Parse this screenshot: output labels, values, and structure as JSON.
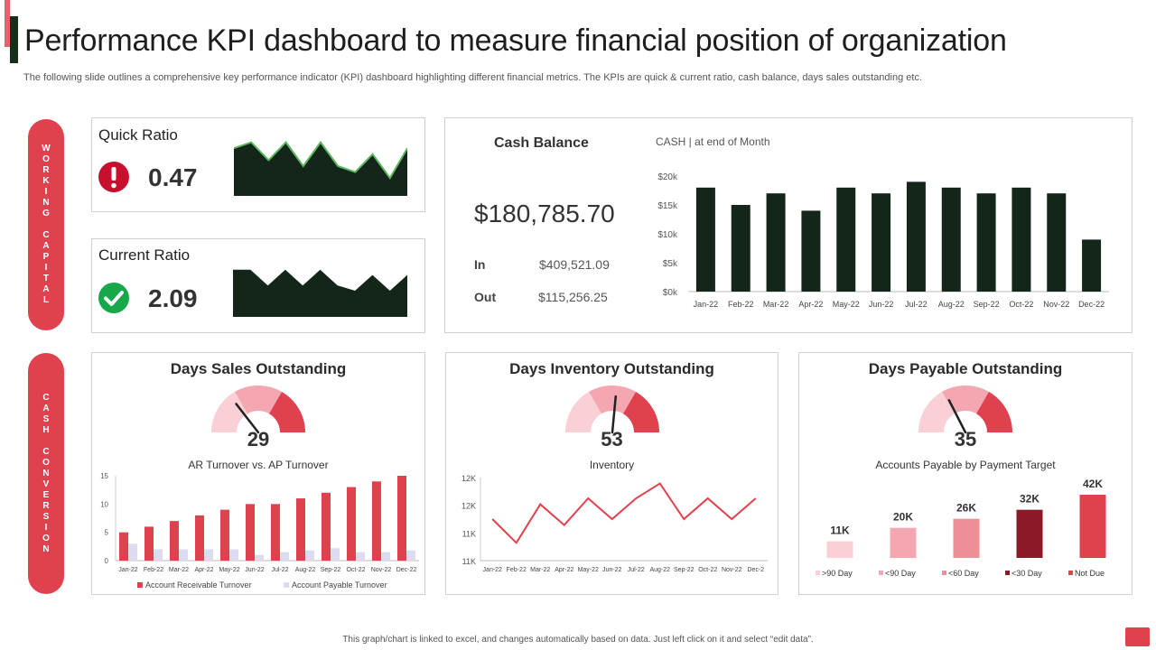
{
  "header": {
    "title": "Performance KPI dashboard to measure financial position of organization",
    "subtitle": "The following slide outlines a comprehensive key performance indicator (KPI) dashboard highlighting different financial metrics. The KPIs are quick & current ratio, cash balance, days sales outstanding etc."
  },
  "side_labels": {
    "working_capital": "WORKING CAPITAL",
    "cash_conversion": "CASH CONVERSION"
  },
  "colors": {
    "accent_red": "#e0414f",
    "dark_green": "#14261a",
    "light_green": "#5cb85c",
    "pink": "#f4a7b0",
    "light_pink": "#f9d0d5",
    "maroon": "#8b1a26",
    "lavender": "#dcdcf0"
  },
  "quick_ratio": {
    "title": "Quick Ratio",
    "value": "0.47",
    "status_icon": "alert-icon",
    "sparkline": [
      8,
      9,
      6,
      9,
      5,
      9,
      5,
      4,
      7,
      3,
      8
    ]
  },
  "current_ratio": {
    "title": "Current Ratio",
    "value": "2.09",
    "status_icon": "check-icon",
    "sparkline": [
      9,
      9,
      6,
      9,
      6,
      9,
      6,
      5,
      8,
      5,
      8
    ]
  },
  "cash_balance": {
    "title": "Cash Balance",
    "total": "$180,785.70",
    "in_label": "In",
    "in_value": "$409,521.09",
    "out_label": "Out",
    "out_value": "$115,256.25"
  },
  "days_sales": {
    "title": "Days Sales Outstanding",
    "gauge_value": "29",
    "needle": 29
  },
  "days_inventory": {
    "title": "Days Inventory Outstanding",
    "gauge_value": "53",
    "needle": 53
  },
  "days_payable": {
    "title": "Days Payable Outstanding",
    "gauge_value": "35",
    "needle": 35
  },
  "chart_data": [
    {
      "type": "bar",
      "title": "CASH | at end of Month",
      "categories": [
        "Jan-22",
        "Feb-22",
        "Mar-22",
        "Apr-22",
        "May-22",
        "Jun-22",
        "Jul-22",
        "Aug-22",
        "Sep-22",
        "Oct-22",
        "Nov-22",
        "Dec-22"
      ],
      "values": [
        18000,
        15000,
        17000,
        14000,
        18000,
        17000,
        19000,
        18000,
        17000,
        18000,
        17000,
        9000
      ],
      "ylim": [
        0,
        20000
      ],
      "yticks": [
        "$0k",
        "$5k",
        "$10k",
        "$15k",
        "$20k"
      ],
      "color": "#14261a"
    },
    {
      "type": "bar",
      "title": "AR Turnover vs. AP Turnover",
      "categories": [
        "Jan-22",
        "Feb-22",
        "Mar-22",
        "Apr-22",
        "May-22",
        "Jun-22",
        "Jul-22",
        "Aug-22",
        "Sep-22",
        "Oct-22",
        "Nov-22",
        "Dec-22"
      ],
      "series": [
        {
          "name": "Account Receivable Turnover",
          "color": "#e0414f",
          "values": [
            5,
            6,
            7,
            8,
            9,
            10,
            10,
            11,
            12,
            13,
            14,
            15
          ]
        },
        {
          "name": "Account Payable Turnover",
          "color": "#dcdcf0",
          "values": [
            3,
            2,
            2,
            2,
            2,
            1,
            1.5,
            1.8,
            2.2,
            1.5,
            1.5,
            1.8
          ]
        }
      ],
      "ylim": [
        0,
        15
      ],
      "yticks": [
        "0",
        "5",
        "10",
        "15"
      ]
    },
    {
      "type": "line",
      "title": "Inventory",
      "categories": [
        "Jan-22",
        "Feb-22",
        "Mar-22",
        "Apr-22",
        "May-22",
        "Jun-22",
        "Jul-22",
        "Aug-22",
        "Sep-22",
        "Oct-22",
        "Nov-22",
        "Dec-2"
      ],
      "values": [
        11.7,
        11.3,
        11.95,
        11.6,
        12.05,
        11.7,
        12.05,
        12.3,
        11.7,
        12.05,
        11.7,
        12.05
      ],
      "ylim": [
        11,
        12.4
      ],
      "yticks": [
        "11K",
        "11K",
        "12K",
        "12K"
      ],
      "color": "#e0414f"
    },
    {
      "type": "bar",
      "title": "Accounts Payable by Payment Target",
      "categories": [
        ">90 Day",
        "<90 Day",
        "<60 Day",
        "<30 Day",
        "Not Due"
      ],
      "values": [
        11,
        20,
        26,
        32,
        42
      ],
      "value_labels": [
        "11K",
        "20K",
        "26K",
        "32K",
        "42K"
      ],
      "colors": [
        "#f9d0d5",
        "#f4a7b0",
        "#ee8f98",
        "#8b1a26",
        "#e0414f"
      ],
      "ylim": [
        0,
        42
      ]
    }
  ],
  "footer": {
    "note": "This graph/chart is linked to excel, and changes automatically based on data. Just left click on it and select “edit data”."
  }
}
